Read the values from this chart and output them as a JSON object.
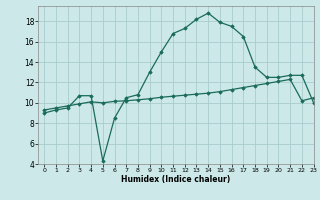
{
  "xlabel": "Humidex (Indice chaleur)",
  "bg_color": "#cce8e8",
  "grid_color": "#aacccc",
  "line_color": "#1a6b5a",
  "xlim": [
    -0.5,
    23
  ],
  "ylim": [
    4,
    19.5
  ],
  "yticks": [
    4,
    6,
    8,
    10,
    12,
    14,
    16,
    18
  ],
  "xticks": [
    0,
    1,
    2,
    3,
    4,
    5,
    6,
    7,
    8,
    9,
    10,
    11,
    12,
    13,
    14,
    15,
    16,
    17,
    18,
    19,
    20,
    21,
    22,
    23
  ],
  "curve1_x": [
    0,
    1,
    2,
    3,
    4,
    5,
    6,
    7,
    8,
    9,
    10,
    11,
    12,
    13,
    14,
    15,
    16,
    17,
    18,
    19,
    20,
    21,
    22,
    23
  ],
  "curve1_y": [
    9.0,
    9.3,
    9.5,
    10.7,
    10.7,
    4.3,
    8.5,
    10.5,
    10.8,
    13.0,
    15.0,
    16.8,
    17.3,
    18.2,
    18.8,
    17.9,
    17.5,
    16.5,
    13.5,
    12.5,
    12.5,
    12.7,
    12.7,
    10.0
  ],
  "curve2_x": [
    0,
    1,
    2,
    3,
    4,
    5,
    6,
    7,
    8,
    9,
    10,
    11,
    12,
    13,
    14,
    15,
    16,
    17,
    18,
    19,
    20,
    21,
    22,
    23
  ],
  "curve2_y": [
    9.3,
    9.5,
    9.7,
    9.9,
    10.1,
    10.0,
    10.15,
    10.2,
    10.3,
    10.4,
    10.55,
    10.65,
    10.75,
    10.85,
    10.95,
    11.1,
    11.3,
    11.5,
    11.7,
    11.9,
    12.1,
    12.3,
    10.2,
    10.5
  ]
}
